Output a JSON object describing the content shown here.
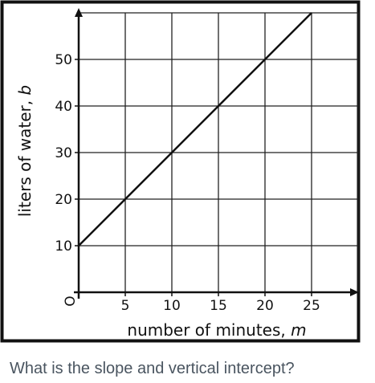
{
  "chart_data": {
    "type": "line",
    "xlabel": "number of minutes, ",
    "xlabel_var": "m",
    "ylabel": "liters of water, ",
    "ylabel_var": "b",
    "origin_label": "O",
    "x_ticks": [
      5,
      10,
      15,
      20,
      25
    ],
    "y_ticks": [
      10,
      20,
      30,
      40,
      50
    ],
    "xlim": [
      0,
      30
    ],
    "ylim": [
      0,
      60
    ],
    "grid": true,
    "series": [
      {
        "x": [
          0,
          25
        ],
        "y": [
          10,
          60
        ]
      }
    ]
  },
  "question": "What is the slope and vertical intercept?"
}
